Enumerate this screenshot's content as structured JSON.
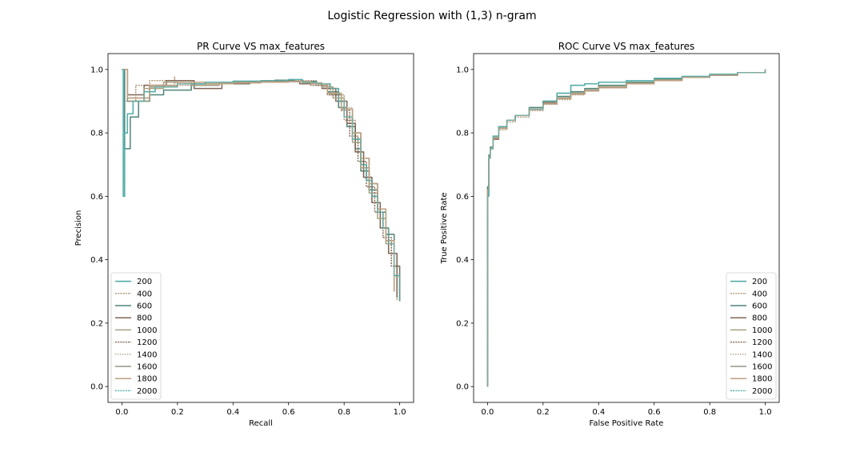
{
  "figure": {
    "suptitle": "Logistic Regression with (1,3) n-gram"
  },
  "series_styles": [
    {
      "name": "200",
      "color": "#4aa69f",
      "dash": ""
    },
    {
      "name": "400",
      "color": "#b19a7c",
      "dash": "2,1.2"
    },
    {
      "name": "600",
      "color": "#4f8479",
      "dash": ""
    },
    {
      "name": "800",
      "color": "#7e6656",
      "dash": ""
    },
    {
      "name": "1000",
      "color": "#a9a182",
      "dash": ""
    },
    {
      "name": "1200",
      "color": "#8b6d58",
      "dash": "2,1.2"
    },
    {
      "name": "1400",
      "color": "#b7a98d",
      "dash": "1.5,1.5"
    },
    {
      "name": "1600",
      "color": "#8f9a86",
      "dash": ""
    },
    {
      "name": "1800",
      "color": "#bd9f80",
      "dash": ""
    },
    {
      "name": "2000",
      "color": "#5ab4b0",
      "dash": "2,1.2"
    }
  ],
  "chart_data": [
    {
      "type": "line",
      "title": "PR Curve VS max_features",
      "xlabel": "Recall",
      "ylabel": "Precision",
      "xlim": [
        -0.05,
        1.05
      ],
      "ylim": [
        -0.05,
        1.05
      ],
      "xticks": [
        0.0,
        0.2,
        0.4,
        0.6,
        0.8,
        1.0
      ],
      "yticks": [
        0.0,
        0.2,
        0.4,
        0.6,
        0.8,
        1.0
      ],
      "legend_position": "lower-left",
      "series": [
        {
          "name": "200",
          "x": [
            0.0,
            0.005,
            0.01,
            0.02,
            0.04,
            0.08,
            0.12,
            0.2,
            0.3,
            0.4,
            0.5,
            0.6,
            0.65,
            0.7,
            0.75,
            0.78,
            0.8,
            0.83,
            0.86,
            0.88,
            0.9,
            0.92,
            0.94,
            0.96,
            0.98,
            1.0
          ],
          "y": [
            1.0,
            0.6,
            0.8,
            0.86,
            0.9,
            0.93,
            0.945,
            0.955,
            0.96,
            0.963,
            0.965,
            0.968,
            0.96,
            0.955,
            0.94,
            0.9,
            0.85,
            0.78,
            0.7,
            0.65,
            0.6,
            0.55,
            0.5,
            0.45,
            0.35,
            0.27
          ]
        },
        {
          "name": "400",
          "x": [
            0.0,
            0.01,
            0.05,
            0.1,
            0.19,
            0.19,
            0.3,
            0.4,
            0.5,
            0.6,
            0.7,
            0.75,
            0.8,
            0.84,
            0.87,
            0.9,
            0.93,
            0.96,
            0.99
          ],
          "y": [
            1.0,
            0.9,
            0.95,
            0.965,
            0.978,
            0.95,
            0.955,
            0.96,
            0.963,
            0.965,
            0.95,
            0.92,
            0.84,
            0.74,
            0.66,
            0.58,
            0.5,
            0.42,
            0.27
          ]
        },
        {
          "name": "600",
          "x": [
            0.0,
            0.01,
            0.03,
            0.06,
            0.1,
            0.15,
            0.25,
            0.35,
            0.45,
            0.55,
            0.62,
            0.7,
            0.74,
            0.78,
            0.81,
            0.84,
            0.86,
            0.89,
            0.92,
            0.95,
            0.98,
            1.0
          ],
          "y": [
            1.0,
            0.75,
            0.85,
            0.9,
            0.92,
            0.935,
            0.95,
            0.958,
            0.962,
            0.966,
            0.962,
            0.955,
            0.93,
            0.88,
            0.82,
            0.75,
            0.68,
            0.62,
            0.55,
            0.48,
            0.38,
            0.27
          ]
        },
        {
          "name": "800",
          "x": [
            0.0,
            0.02,
            0.08,
            0.16,
            0.26,
            0.36,
            0.46,
            0.56,
            0.64,
            0.72,
            0.77,
            0.81,
            0.84,
            0.87,
            0.9,
            0.93,
            0.96,
            0.99
          ],
          "y": [
            1.0,
            0.92,
            0.95,
            0.965,
            0.94,
            0.955,
            0.96,
            0.962,
            0.955,
            0.94,
            0.9,
            0.83,
            0.74,
            0.66,
            0.58,
            0.5,
            0.42,
            0.28
          ]
        },
        {
          "name": "1000",
          "x": [
            0.0,
            0.02,
            0.08,
            0.15,
            0.25,
            0.35,
            0.45,
            0.55,
            0.65,
            0.72,
            0.76,
            0.8,
            0.83,
            0.86,
            0.89,
            0.92,
            0.95,
            0.98
          ],
          "y": [
            1.0,
            0.9,
            0.94,
            0.96,
            0.95,
            0.957,
            0.96,
            0.962,
            0.958,
            0.945,
            0.91,
            0.85,
            0.77,
            0.69,
            0.61,
            0.53,
            0.45,
            0.3
          ]
        },
        {
          "name": "1200",
          "x": [
            0.0,
            0.02,
            0.1,
            0.2,
            0.3,
            0.4,
            0.5,
            0.6,
            0.68,
            0.74,
            0.79,
            0.82,
            0.85,
            0.88,
            0.91,
            0.94,
            0.97,
            1.0
          ],
          "y": [
            1.0,
            0.91,
            0.95,
            0.96,
            0.955,
            0.96,
            0.963,
            0.962,
            0.95,
            0.92,
            0.87,
            0.79,
            0.71,
            0.63,
            0.55,
            0.47,
            0.38,
            0.27
          ]
        },
        {
          "name": "1400",
          "x": [
            0.0,
            0.02,
            0.1,
            0.2,
            0.3,
            0.4,
            0.5,
            0.6,
            0.68,
            0.74,
            0.79,
            0.83,
            0.86,
            0.89,
            0.92,
            0.95,
            0.98
          ],
          "y": [
            1.0,
            0.9,
            0.945,
            0.955,
            0.958,
            0.96,
            0.962,
            0.963,
            0.955,
            0.925,
            0.88,
            0.8,
            0.72,
            0.64,
            0.56,
            0.46,
            0.3
          ]
        },
        {
          "name": "1600",
          "x": [
            0.0,
            0.02,
            0.1,
            0.2,
            0.3,
            0.4,
            0.5,
            0.6,
            0.68,
            0.74,
            0.79,
            0.83,
            0.86,
            0.89,
            0.92,
            0.95,
            0.98
          ],
          "y": [
            1.0,
            0.9,
            0.945,
            0.96,
            0.955,
            0.958,
            0.96,
            0.962,
            0.955,
            0.925,
            0.875,
            0.8,
            0.72,
            0.64,
            0.56,
            0.46,
            0.3
          ]
        },
        {
          "name": "1800",
          "x": [
            0.0,
            0.02,
            0.1,
            0.2,
            0.3,
            0.4,
            0.5,
            0.6,
            0.68,
            0.74,
            0.79,
            0.83,
            0.86,
            0.89,
            0.92,
            0.95,
            0.98
          ],
          "y": [
            1.0,
            0.91,
            0.95,
            0.96,
            0.955,
            0.958,
            0.96,
            0.962,
            0.955,
            0.925,
            0.875,
            0.8,
            0.72,
            0.64,
            0.56,
            0.46,
            0.3
          ]
        },
        {
          "name": "2000",
          "x": [
            0.0,
            0.005,
            0.01,
            0.02,
            0.04,
            0.08,
            0.12,
            0.2,
            0.3,
            0.4,
            0.5,
            0.6,
            0.65,
            0.7,
            0.75,
            0.78,
            0.8,
            0.83,
            0.86,
            0.88,
            0.9,
            0.92,
            0.94,
            0.96,
            0.98,
            1.0
          ],
          "y": [
            1.0,
            0.6,
            0.8,
            0.86,
            0.9,
            0.93,
            0.945,
            0.955,
            0.96,
            0.963,
            0.965,
            0.968,
            0.96,
            0.955,
            0.94,
            0.9,
            0.85,
            0.78,
            0.7,
            0.65,
            0.6,
            0.55,
            0.5,
            0.45,
            0.35,
            0.27
          ]
        }
      ]
    },
    {
      "type": "line",
      "title": "ROC Curve VS max_features",
      "xlabel": "False Positive Rate",
      "ylabel": "True Positive Rate",
      "xlim": [
        -0.05,
        1.05
      ],
      "ylim": [
        -0.05,
        1.05
      ],
      "xticks": [
        0.0,
        0.2,
        0.4,
        0.6,
        0.8,
        1.0
      ],
      "yticks": [
        0.0,
        0.2,
        0.4,
        0.6,
        0.8,
        1.0
      ],
      "legend_position": "lower-right",
      "series": [
        {
          "name": "200",
          "x": [
            0.0,
            0.0,
            0.005,
            0.01,
            0.02,
            0.04,
            0.07,
            0.1,
            0.15,
            0.2,
            0.25,
            0.3,
            0.35,
            0.4,
            0.5,
            0.6,
            0.7,
            0.8,
            0.9,
            1.0
          ],
          "y": [
            0.0,
            0.6,
            0.72,
            0.75,
            0.79,
            0.82,
            0.84,
            0.855,
            0.875,
            0.9,
            0.925,
            0.95,
            0.955,
            0.96,
            0.965,
            0.972,
            0.978,
            0.985,
            0.99,
            1.0
          ]
        },
        {
          "name": "400",
          "x": [
            0.0,
            0.0,
            0.005,
            0.01,
            0.02,
            0.04,
            0.07,
            0.1,
            0.15,
            0.2,
            0.25,
            0.3,
            0.35,
            0.4,
            0.5,
            0.6,
            0.7,
            0.8,
            0.9,
            1.0
          ],
          "y": [
            0.0,
            0.62,
            0.72,
            0.75,
            0.78,
            0.81,
            0.835,
            0.85,
            0.87,
            0.89,
            0.905,
            0.92,
            0.935,
            0.945,
            0.96,
            0.968,
            0.975,
            0.982,
            0.99,
            1.0
          ]
        },
        {
          "name": "600",
          "x": [
            0.0,
            0.0,
            0.005,
            0.01,
            0.02,
            0.04,
            0.07,
            0.1,
            0.15,
            0.2,
            0.25,
            0.3,
            0.35,
            0.4,
            0.5,
            0.6,
            0.7,
            0.8,
            0.9,
            1.0
          ],
          "y": [
            0.0,
            0.63,
            0.73,
            0.755,
            0.785,
            0.815,
            0.84,
            0.855,
            0.88,
            0.9,
            0.915,
            0.93,
            0.94,
            0.95,
            0.96,
            0.97,
            0.977,
            0.984,
            0.99,
            1.0
          ]
        },
        {
          "name": "800",
          "x": [
            0.0,
            0.0,
            0.005,
            0.01,
            0.02,
            0.04,
            0.07,
            0.1,
            0.15,
            0.2,
            0.25,
            0.3,
            0.35,
            0.4,
            0.5,
            0.6,
            0.7,
            0.8,
            0.9,
            1.0
          ],
          "y": [
            0.0,
            0.62,
            0.72,
            0.75,
            0.78,
            0.815,
            0.84,
            0.855,
            0.875,
            0.895,
            0.91,
            0.925,
            0.935,
            0.945,
            0.955,
            0.965,
            0.975,
            0.982,
            0.99,
            1.0
          ]
        },
        {
          "name": "1000",
          "x": [
            0.0,
            0.0,
            0.005,
            0.01,
            0.02,
            0.04,
            0.07,
            0.1,
            0.15,
            0.2,
            0.25,
            0.3,
            0.35,
            0.4,
            0.5,
            0.6,
            0.7,
            0.8,
            0.9,
            1.0
          ],
          "y": [
            0.0,
            0.62,
            0.72,
            0.75,
            0.785,
            0.815,
            0.84,
            0.855,
            0.875,
            0.893,
            0.91,
            0.925,
            0.935,
            0.945,
            0.957,
            0.967,
            0.976,
            0.983,
            0.99,
            1.0
          ]
        },
        {
          "name": "1200",
          "x": [
            0.0,
            0.0,
            0.005,
            0.01,
            0.02,
            0.04,
            0.07,
            0.1,
            0.15,
            0.2,
            0.25,
            0.3,
            0.35,
            0.4,
            0.5,
            0.6,
            0.7,
            0.8,
            0.9,
            1.0
          ],
          "y": [
            0.0,
            0.62,
            0.72,
            0.75,
            0.785,
            0.815,
            0.84,
            0.855,
            0.875,
            0.892,
            0.908,
            0.922,
            0.932,
            0.942,
            0.955,
            0.965,
            0.975,
            0.982,
            0.99,
            1.0
          ]
        },
        {
          "name": "1400",
          "x": [
            0.0,
            0.0,
            0.005,
            0.01,
            0.02,
            0.04,
            0.07,
            0.1,
            0.15,
            0.2,
            0.25,
            0.3,
            0.35,
            0.4,
            0.5,
            0.6,
            0.7,
            0.8,
            0.9,
            1.0
          ],
          "y": [
            0.0,
            0.62,
            0.72,
            0.75,
            0.785,
            0.815,
            0.84,
            0.855,
            0.875,
            0.892,
            0.908,
            0.922,
            0.932,
            0.942,
            0.955,
            0.965,
            0.975,
            0.982,
            0.99,
            1.0
          ]
        },
        {
          "name": "1600",
          "x": [
            0.0,
            0.0,
            0.005,
            0.01,
            0.02,
            0.04,
            0.07,
            0.1,
            0.15,
            0.2,
            0.25,
            0.3,
            0.35,
            0.4,
            0.5,
            0.6,
            0.7,
            0.8,
            0.9,
            1.0
          ],
          "y": [
            0.0,
            0.62,
            0.72,
            0.75,
            0.785,
            0.815,
            0.84,
            0.855,
            0.875,
            0.892,
            0.908,
            0.922,
            0.932,
            0.942,
            0.955,
            0.965,
            0.975,
            0.982,
            0.99,
            1.0
          ]
        },
        {
          "name": "1800",
          "x": [
            0.0,
            0.0,
            0.005,
            0.01,
            0.02,
            0.04,
            0.07,
            0.1,
            0.15,
            0.2,
            0.25,
            0.3,
            0.35,
            0.4,
            0.5,
            0.6,
            0.7,
            0.8,
            0.9,
            1.0
          ],
          "y": [
            0.0,
            0.62,
            0.72,
            0.75,
            0.785,
            0.815,
            0.84,
            0.855,
            0.875,
            0.892,
            0.908,
            0.922,
            0.932,
            0.942,
            0.955,
            0.965,
            0.975,
            0.982,
            0.99,
            1.0
          ]
        },
        {
          "name": "2000",
          "x": [
            0.0,
            0.0,
            0.005,
            0.01,
            0.02,
            0.04,
            0.07,
            0.1,
            0.15,
            0.2,
            0.25,
            0.3,
            0.35,
            0.4,
            0.5,
            0.6,
            0.7,
            0.8,
            0.9,
            1.0
          ],
          "y": [
            0.0,
            0.6,
            0.72,
            0.75,
            0.79,
            0.82,
            0.84,
            0.855,
            0.875,
            0.9,
            0.925,
            0.95,
            0.955,
            0.96,
            0.965,
            0.972,
            0.978,
            0.985,
            0.99,
            1.0
          ]
        }
      ]
    }
  ]
}
